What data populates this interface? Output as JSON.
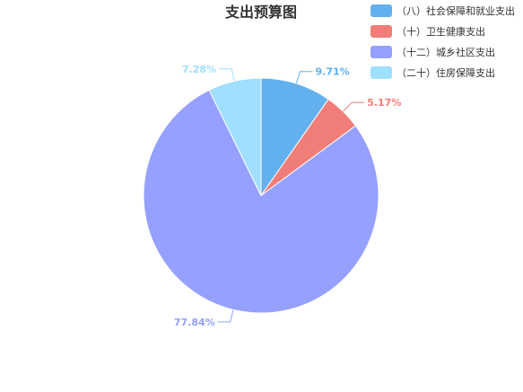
{
  "chart_data": {
    "type": "pie",
    "title": "支出预算图",
    "legend_position": "top-right",
    "categories": [
      "（八）社会保障和就业支出",
      "（十）卫生健康支出",
      "（十二）城乡社区支出",
      "（二十）住房保障支出"
    ],
    "values": [
      9.71,
      5.17,
      77.84,
      7.28
    ],
    "labels": [
      "9.71%",
      "5.17%",
      "77.84%",
      "7.28%"
    ],
    "colors": [
      "#63b0ee",
      "#f07d78",
      "#95a0ff",
      "#9fdfff"
    ]
  }
}
